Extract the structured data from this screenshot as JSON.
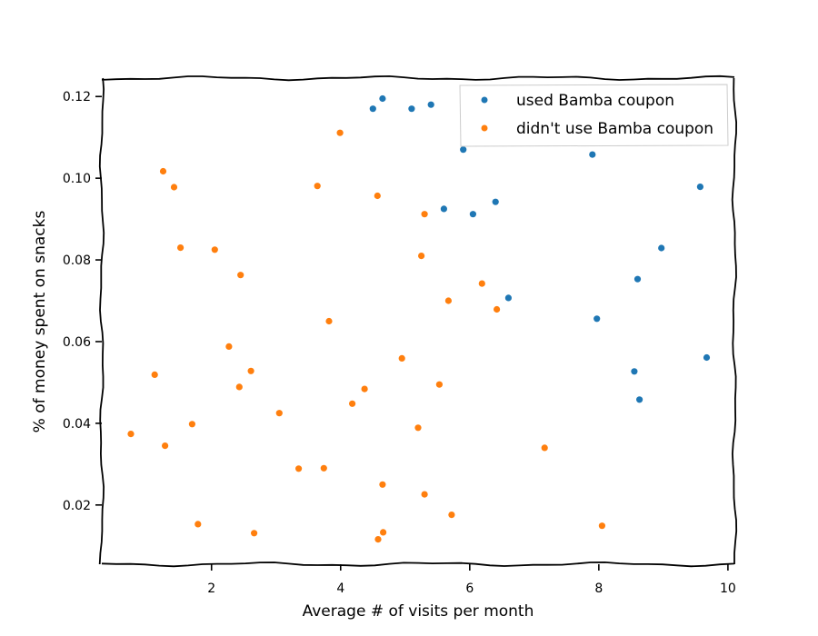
{
  "chart_data": {
    "type": "scatter",
    "title": "",
    "xlabel": "Average # of visits per month",
    "ylabel": "% of money spent on snacks",
    "xlim": [
      0.3,
      10.1
    ],
    "ylim": [
      0.0055,
      0.1245
    ],
    "xticks": [
      2,
      4,
      6,
      8,
      10
    ],
    "yticks": [
      0.02,
      0.04,
      0.06,
      0.08,
      0.1,
      0.12
    ],
    "ytick_labels": [
      "0.02",
      "0.04",
      "0.06",
      "0.08",
      "0.10",
      "0.12"
    ],
    "grid": false,
    "legend_position": "top-right",
    "series": [
      {
        "name": "used Bamba coupon",
        "color": "#1f77b4",
        "points": [
          {
            "x": 4.5,
            "y": 0.117
          },
          {
            "x": 4.65,
            "y": 0.1195
          },
          {
            "x": 5.1,
            "y": 0.117
          },
          {
            "x": 5.4,
            "y": 0.118
          },
          {
            "x": 5.9,
            "y": 0.107
          },
          {
            "x": 5.6,
            "y": 0.0925
          },
          {
            "x": 6.05,
            "y": 0.0912
          },
          {
            "x": 6.4,
            "y": 0.0942
          },
          {
            "x": 6.6,
            "y": 0.0707
          },
          {
            "x": 7.9,
            "y": 0.1058
          },
          {
            "x": 7.97,
            "y": 0.0656
          },
          {
            "x": 8.55,
            "y": 0.0527
          },
          {
            "x": 8.6,
            "y": 0.0753
          },
          {
            "x": 8.63,
            "y": 0.0458
          },
          {
            "x": 8.97,
            "y": 0.0829
          },
          {
            "x": 9.57,
            "y": 0.0979
          },
          {
            "x": 9.67,
            "y": 0.0561
          }
        ]
      },
      {
        "name": "didn't use Bamba coupon",
        "color": "#ff7f0e",
        "points": [
          {
            "x": 0.75,
            "y": 0.0374
          },
          {
            "x": 1.12,
            "y": 0.0519
          },
          {
            "x": 1.25,
            "y": 0.1017
          },
          {
            "x": 1.28,
            "y": 0.0345
          },
          {
            "x": 1.42,
            "y": 0.0978
          },
          {
            "x": 1.52,
            "y": 0.083
          },
          {
            "x": 1.7,
            "y": 0.0398
          },
          {
            "x": 1.79,
            "y": 0.0153
          },
          {
            "x": 2.05,
            "y": 0.0825
          },
          {
            "x": 2.27,
            "y": 0.0588
          },
          {
            "x": 2.43,
            "y": 0.0489
          },
          {
            "x": 2.45,
            "y": 0.0763
          },
          {
            "x": 2.61,
            "y": 0.0528
          },
          {
            "x": 2.66,
            "y": 0.0131
          },
          {
            "x": 3.05,
            "y": 0.0425
          },
          {
            "x": 3.35,
            "y": 0.0289
          },
          {
            "x": 3.64,
            "y": 0.0981
          },
          {
            "x": 3.74,
            "y": 0.029
          },
          {
            "x": 3.82,
            "y": 0.065
          },
          {
            "x": 3.99,
            "y": 0.1111
          },
          {
            "x": 4.18,
            "y": 0.0448
          },
          {
            "x": 4.37,
            "y": 0.0484
          },
          {
            "x": 4.57,
            "y": 0.0957
          },
          {
            "x": 4.58,
            "y": 0.0116
          },
          {
            "x": 4.65,
            "y": 0.025
          },
          {
            "x": 4.66,
            "y": 0.0133
          },
          {
            "x": 4.95,
            "y": 0.0559
          },
          {
            "x": 5.2,
            "y": 0.0389
          },
          {
            "x": 5.25,
            "y": 0.081
          },
          {
            "x": 5.3,
            "y": 0.0912
          },
          {
            "x": 5.3,
            "y": 0.0226
          },
          {
            "x": 5.53,
            "y": 0.0495
          },
          {
            "x": 5.67,
            "y": 0.07
          },
          {
            "x": 5.72,
            "y": 0.0176
          },
          {
            "x": 6.19,
            "y": 0.0742
          },
          {
            "x": 6.42,
            "y": 0.0679
          },
          {
            "x": 7.16,
            "y": 0.034
          },
          {
            "x": 8.05,
            "y": 0.0149
          }
        ]
      }
    ]
  }
}
